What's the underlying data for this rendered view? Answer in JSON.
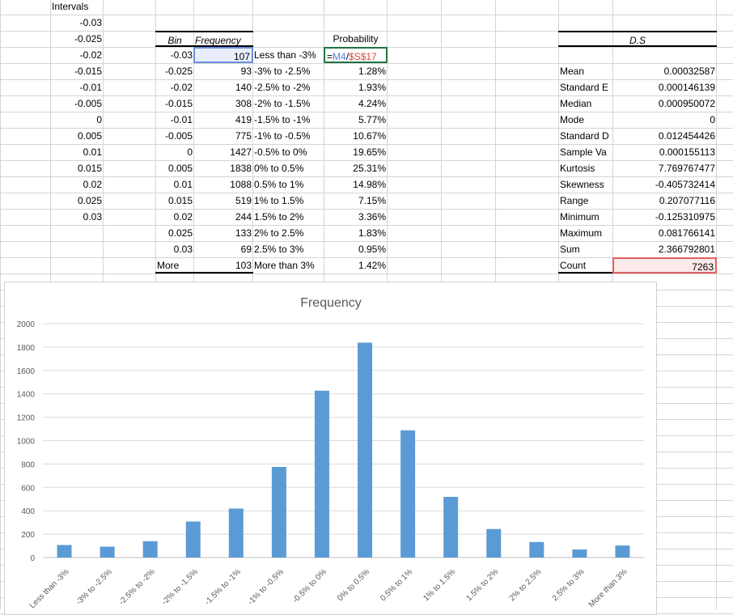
{
  "intervals": {
    "header": "Intervals",
    "values": [
      "-0.03",
      "-0.025",
      "-0.02",
      "-0.015",
      "-0.01",
      "-0.005",
      "0",
      "0.005",
      "0.01",
      "0.015",
      "0.02",
      "0.025",
      "0.03"
    ]
  },
  "table": {
    "headers": {
      "bin": "Bin",
      "frequency": "Frequency",
      "probability": "Probability"
    },
    "formula": {
      "eq": "=",
      "ref1": "M4",
      "slash": "/",
      "ref2": "$S$17"
    },
    "rows": [
      {
        "bin": "-0.03",
        "freq": "107",
        "label": "Less than -3%",
        "prob": ""
      },
      {
        "bin": "-0.025",
        "freq": "93",
        "label": "-3% to -2.5%",
        "prob": "1.28%"
      },
      {
        "bin": "-0.02",
        "freq": "140",
        "label": "-2.5% to -2%",
        "prob": "1.93%"
      },
      {
        "bin": "-0.015",
        "freq": "308",
        "label": "-2% to -1.5%",
        "prob": "4.24%"
      },
      {
        "bin": "-0.01",
        "freq": "419",
        "label": "-1.5% to -1%",
        "prob": "5.77%"
      },
      {
        "bin": "-0.005",
        "freq": "775",
        "label": "-1% to -0.5%",
        "prob": "10.67%"
      },
      {
        "bin": "0",
        "freq": "1427",
        "label": "-0.5% to 0%",
        "prob": "19.65%"
      },
      {
        "bin": "0.005",
        "freq": "1838",
        "label": "0% to 0.5%",
        "prob": "25.31%"
      },
      {
        "bin": "0.01",
        "freq": "1088",
        "label": "0.5% to 1%",
        "prob": "14.98%"
      },
      {
        "bin": "0.015",
        "freq": "519",
        "label": "1% to 1.5%",
        "prob": "7.15%"
      },
      {
        "bin": "0.02",
        "freq": "244",
        "label": "1.5% to 2%",
        "prob": "3.36%"
      },
      {
        "bin": "0.025",
        "freq": "133",
        "label": "2% to 2.5%",
        "prob": "1.83%"
      },
      {
        "bin": "0.03",
        "freq": "69",
        "label": "2.5% to 3%",
        "prob": "0.95%"
      },
      {
        "bin": "More",
        "freq": "103",
        "label": "More than 3%",
        "prob": "1.42%"
      }
    ]
  },
  "stats": {
    "title": "D.S",
    "rows": [
      {
        "label": "Mean",
        "value": "0.00032587"
      },
      {
        "label": "Standard E",
        "value": "0.000146139"
      },
      {
        "label": "Median",
        "value": "0.000950072"
      },
      {
        "label": "Mode",
        "value": "0"
      },
      {
        "label": "Standard D",
        "value": "0.012454426"
      },
      {
        "label": "Sample Va",
        "value": "0.000155113"
      },
      {
        "label": "Kurtosis",
        "value": "7.769767477"
      },
      {
        "label": "Skewness",
        "value": "-0.405732414"
      },
      {
        "label": "Range",
        "value": "0.207077116"
      },
      {
        "label": "Minimum",
        "value": "-0.125310975"
      },
      {
        "label": "Maximum",
        "value": "0.081766141"
      },
      {
        "label": "Sum",
        "value": "2.366792801"
      },
      {
        "label": "Count",
        "value": "7263"
      }
    ]
  },
  "chart_data": {
    "type": "bar",
    "title": "Frequency",
    "categories": [
      "Less than -3%",
      "-3% to -2.5%",
      "-2.5% to -2%",
      "-2% to -1.5%",
      "-1.5% to -1%",
      "-1% to -0.5%",
      "-0.5% to 0%",
      "0% to 0.5%",
      "0.5% to 1%",
      "1% to 1.5%",
      "1.5% to 2%",
      "2% to 2.5%",
      "2.5% to 3%",
      "More than 3%"
    ],
    "values": [
      107,
      93,
      140,
      308,
      419,
      775,
      1427,
      1838,
      1088,
      519,
      244,
      133,
      69,
      103
    ],
    "ylim": [
      0,
      2000
    ],
    "yticks": [
      0,
      200,
      400,
      600,
      800,
      1000,
      1200,
      1400,
      1600,
      1800,
      2000
    ],
    "grid": true,
    "bar_color": "#5b9bd5"
  }
}
